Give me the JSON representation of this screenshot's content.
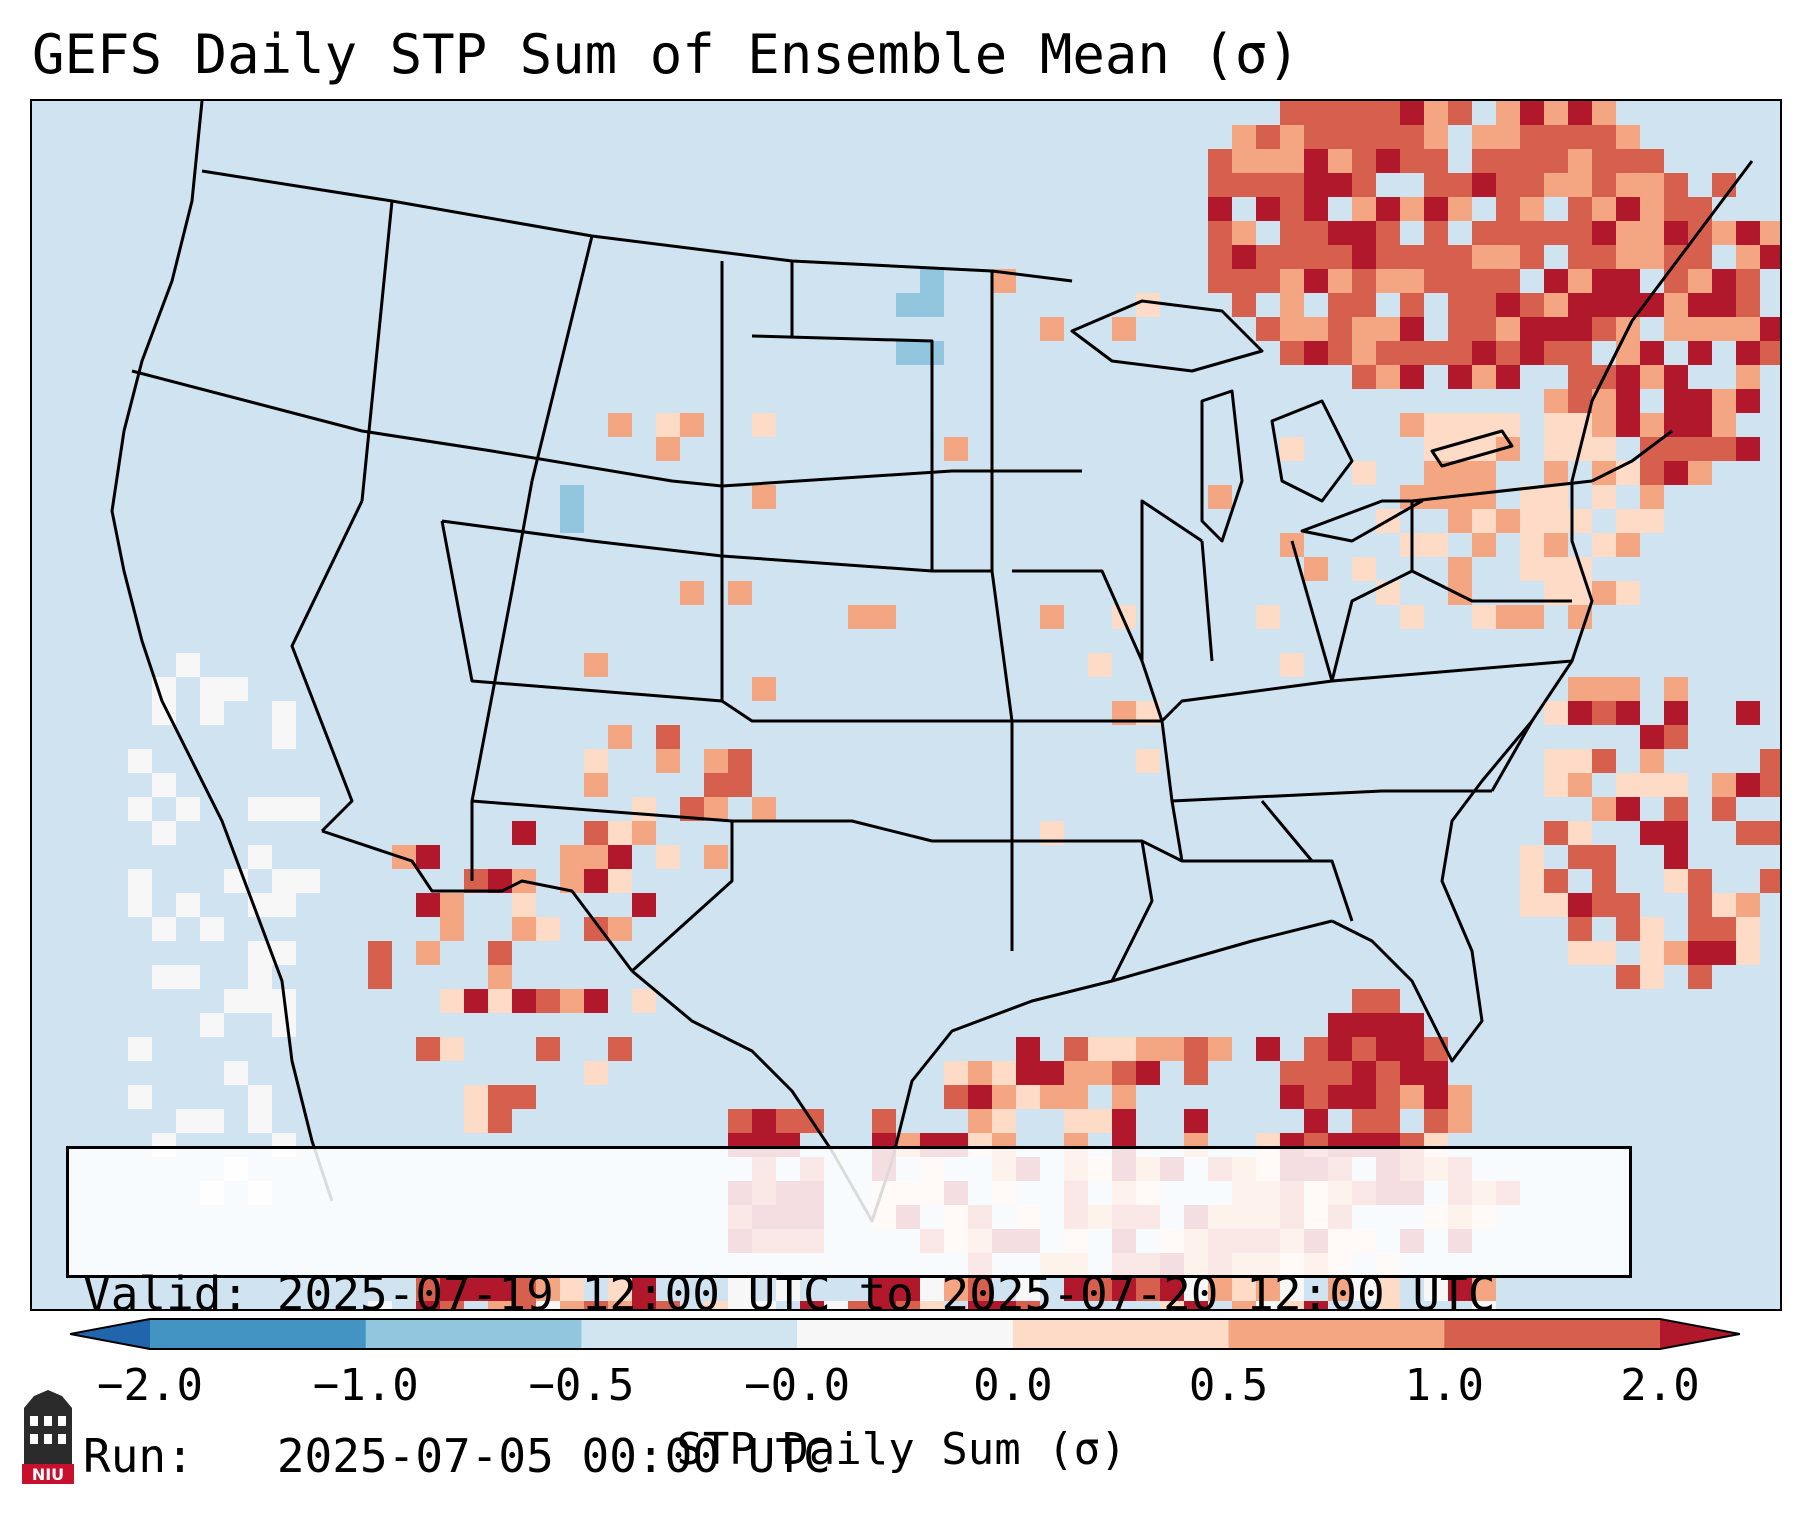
{
  "title": "GEFS Daily STP Sum of Ensemble Mean (σ)",
  "info": {
    "valid_line": "Valid: 2025-07-19 12:00 UTC to 2025-07-20 12:00 UTC",
    "run_line": "Run:   2025-07-05 00:00 UTC"
  },
  "colorbar": {
    "label": "STP Daily Sum (σ)",
    "ticks": [
      "−2.0",
      "−1.0",
      "−0.5",
      "−0.0",
      "0.0",
      "0.5",
      "1.0",
      "2.0"
    ],
    "bins": [
      {
        "range": "< -2.0",
        "color": "#2166ac"
      },
      {
        "range": "-2.0 to -1.0",
        "color": "#4393c3"
      },
      {
        "range": "-1.0 to -0.5",
        "color": "#92c5de"
      },
      {
        "range": "-0.5 to -0.0",
        "color": "#d1e5f0"
      },
      {
        "range": "-0.0 to 0.0",
        "color": "#f7f7f7"
      },
      {
        "range": "0.0 to 0.5",
        "color": "#fddbc7"
      },
      {
        "range": "0.5 to 1.0",
        "color": "#f4a582"
      },
      {
        "range": "1.0 to 2.0",
        "color": "#d6604d"
      },
      {
        "range": "> 2.0",
        "color": "#b2182b"
      }
    ]
  },
  "map": {
    "background_color": "#cfe3f0",
    "region": "Contiguous United States"
  },
  "logo": {
    "text": "NIU",
    "icon": "niu-tower-logo-icon"
  }
}
